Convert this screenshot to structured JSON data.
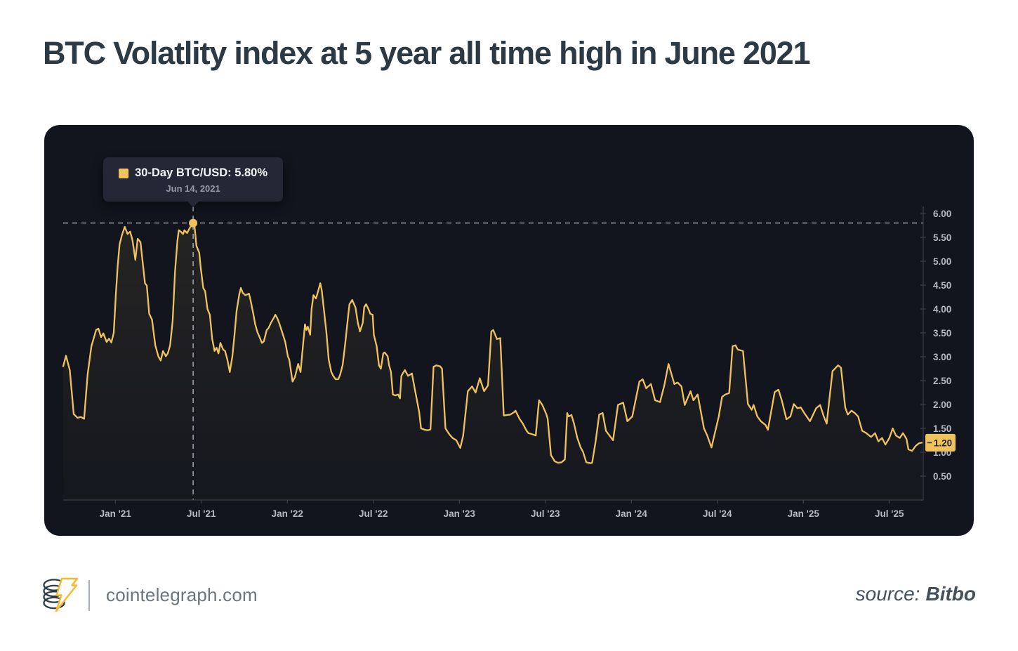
{
  "title": "BTC Volatlity index at 5 year all time high in June 2021",
  "tooltip": {
    "label": "30-Day BTC/USD: 5.80%",
    "date": "Jun 14, 2021",
    "swatch_color": "#F0C25C"
  },
  "footer": {
    "site": "cointelegraph.com",
    "source_label": "source:",
    "source_name": "Bitbo"
  },
  "colors": {
    "page_bg": "#FFFFFF",
    "panel_bg": "#12151E",
    "title_text": "#2C3A45",
    "accent_gold": "#F0C25C",
    "dashed_line": "#A9B0BA",
    "axis_line": "#3A3F4A",
    "axis_text": "#B5BAC3",
    "badge_bg": "#F0C25C",
    "badge_text": "#232838",
    "tooltip_bg": "#242836",
    "tooltip_date_text": "#939AA6",
    "footer_site_text": "#6B757E",
    "source_text": "#44505C"
  },
  "chart_data": {
    "type": "line",
    "series_name": "30-Day BTC/USD Volatility",
    "title": "BTC Volatlity index at 5 year all time high in June 2021",
    "xlabel": "",
    "ylabel": "",
    "grid": false,
    "legend_position": "tooltip",
    "line_color": "#F0C25C",
    "ylim": [
      0,
      6.0
    ],
    "y_ticks": [
      0.5,
      1.0,
      1.5,
      2.0,
      2.5,
      3.0,
      3.5,
      4.0,
      4.5,
      5.0,
      5.5,
      6.0
    ],
    "x_domain": [
      "2020-09-12",
      "2025-09-12"
    ],
    "x_ticks": [
      {
        "label": "Jan '21",
        "date": "2021-01-01"
      },
      {
        "label": "Jul '21",
        "date": "2021-07-01"
      },
      {
        "label": "Jan '22",
        "date": "2022-01-01"
      },
      {
        "label": "Jul '22",
        "date": "2022-07-01"
      },
      {
        "label": "Jan '23",
        "date": "2023-01-01"
      },
      {
        "label": "Jul '23",
        "date": "2023-07-01"
      },
      {
        "label": "Jan '24",
        "date": "2024-01-01"
      },
      {
        "label": "Jul '24",
        "date": "2024-07-01"
      },
      {
        "label": "Jan '25",
        "date": "2025-01-01"
      },
      {
        "label": "Jul '25",
        "date": "2025-07-01"
      }
    ],
    "marker": {
      "date": "2021-06-14",
      "value": 5.8,
      "label": "30-Day BTC/USD: 5.80%",
      "date_label": "Jun 14, 2021"
    },
    "dashed_reference_value": 5.8,
    "current_value": {
      "label": "1.20",
      "value": 1.2
    },
    "points": [
      [
        "2020-09-12",
        2.8
      ],
      [
        "2020-09-18",
        3.02
      ],
      [
        "2020-09-26",
        2.72
      ],
      [
        "2020-10-04",
        1.8
      ],
      [
        "2020-10-12",
        1.72
      ],
      [
        "2020-10-19",
        1.74
      ],
      [
        "2020-10-26",
        1.7
      ],
      [
        "2020-11-03",
        2.63
      ],
      [
        "2020-11-11",
        3.22
      ],
      [
        "2020-11-21",
        3.56
      ],
      [
        "2020-11-26",
        3.59
      ],
      [
        "2020-12-01",
        3.41
      ],
      [
        "2020-12-06",
        3.49
      ],
      [
        "2020-12-13",
        3.31
      ],
      [
        "2020-12-18",
        3.38
      ],
      [
        "2020-12-23",
        3.3
      ],
      [
        "2020-12-28",
        3.5
      ],
      [
        "2021-01-02",
        4.3
      ],
      [
        "2021-01-06",
        4.9
      ],
      [
        "2021-01-10",
        5.35
      ],
      [
        "2021-01-15",
        5.55
      ],
      [
        "2021-01-21",
        5.72
      ],
      [
        "2021-01-27",
        5.57
      ],
      [
        "2021-02-02",
        5.62
      ],
      [
        "2021-02-07",
        5.44
      ],
      [
        "2021-02-13",
        5.03
      ],
      [
        "2021-02-18",
        5.47
      ],
      [
        "2021-02-24",
        5.4
      ],
      [
        "2021-03-03",
        4.54
      ],
      [
        "2021-03-07",
        4.49
      ],
      [
        "2021-03-12",
        3.9
      ],
      [
        "2021-03-18",
        3.78
      ],
      [
        "2021-03-25",
        3.24
      ],
      [
        "2021-04-01",
        3.01
      ],
      [
        "2021-04-06",
        2.92
      ],
      [
        "2021-04-11",
        3.12
      ],
      [
        "2021-04-17",
        3.01
      ],
      [
        "2021-04-21",
        3.07
      ],
      [
        "2021-04-26",
        3.24
      ],
      [
        "2021-05-01",
        3.75
      ],
      [
        "2021-05-06",
        4.78
      ],
      [
        "2021-05-11",
        5.43
      ],
      [
        "2021-05-14",
        5.65
      ],
      [
        "2021-05-18",
        5.62
      ],
      [
        "2021-05-23",
        5.57
      ],
      [
        "2021-05-26",
        5.65
      ],
      [
        "2021-06-01",
        5.59
      ],
      [
        "2021-06-07",
        5.7
      ],
      [
        "2021-06-14",
        5.8
      ],
      [
        "2021-06-17",
        5.74
      ],
      [
        "2021-06-21",
        5.32
      ],
      [
        "2021-06-27",
        5.18
      ],
      [
        "2021-06-30",
        4.88
      ],
      [
        "2021-07-05",
        4.44
      ],
      [
        "2021-07-09",
        4.37
      ],
      [
        "2021-07-14",
        4.0
      ],
      [
        "2021-07-19",
        3.88
      ],
      [
        "2021-07-24",
        3.38
      ],
      [
        "2021-07-29",
        3.12
      ],
      [
        "2021-08-03",
        3.19
      ],
      [
        "2021-08-07",
        3.07
      ],
      [
        "2021-08-11",
        3.29
      ],
      [
        "2021-08-17",
        3.15
      ],
      [
        "2021-08-21",
        3.12
      ],
      [
        "2021-08-26",
        2.93
      ],
      [
        "2021-08-31",
        2.68
      ],
      [
        "2021-09-06",
        3.01
      ],
      [
        "2021-09-10",
        3.41
      ],
      [
        "2021-09-15",
        3.96
      ],
      [
        "2021-09-21",
        4.32
      ],
      [
        "2021-09-24",
        4.44
      ],
      [
        "2021-09-28",
        4.34
      ],
      [
        "2021-10-03",
        4.29
      ],
      [
        "2021-10-11",
        4.32
      ],
      [
        "2021-10-14",
        4.19
      ],
      [
        "2021-10-20",
        3.9
      ],
      [
        "2021-10-24",
        3.68
      ],
      [
        "2021-10-29",
        3.51
      ],
      [
        "2021-11-03",
        3.41
      ],
      [
        "2021-11-08",
        3.29
      ],
      [
        "2021-11-12",
        3.32
      ],
      [
        "2021-11-18",
        3.56
      ],
      [
        "2021-11-22",
        3.6
      ],
      [
        "2021-11-27",
        3.71
      ],
      [
        "2021-12-03",
        3.82
      ],
      [
        "2021-12-06",
        3.88
      ],
      [
        "2021-12-10",
        3.81
      ],
      [
        "2021-12-15",
        3.68
      ],
      [
        "2021-12-19",
        3.56
      ],
      [
        "2021-12-27",
        3.31
      ],
      [
        "2022-01-02",
        3.01
      ],
      [
        "2022-01-05",
        2.94
      ],
      [
        "2022-01-12",
        2.48
      ],
      [
        "2022-01-17",
        2.57
      ],
      [
        "2022-01-24",
        2.85
      ],
      [
        "2022-01-29",
        2.68
      ],
      [
        "2022-02-04",
        3.26
      ],
      [
        "2022-02-08",
        3.68
      ],
      [
        "2022-02-11",
        3.56
      ],
      [
        "2022-02-14",
        3.63
      ],
      [
        "2022-02-19",
        3.46
      ],
      [
        "2022-02-22",
        4.0
      ],
      [
        "2022-02-26",
        4.29
      ],
      [
        "2022-03-01",
        4.22
      ],
      [
        "2022-03-04",
        4.32
      ],
      [
        "2022-03-10",
        4.54
      ],
      [
        "2022-03-13",
        4.4
      ],
      [
        "2022-03-19",
        3.88
      ],
      [
        "2022-03-23",
        3.51
      ],
      [
        "2022-03-28",
        2.94
      ],
      [
        "2022-04-03",
        2.68
      ],
      [
        "2022-04-07",
        2.6
      ],
      [
        "2022-04-12",
        2.53
      ],
      [
        "2022-04-18",
        2.53
      ],
      [
        "2022-04-22",
        2.63
      ],
      [
        "2022-04-27",
        2.82
      ],
      [
        "2022-05-02",
        3.26
      ],
      [
        "2022-05-07",
        3.74
      ],
      [
        "2022-05-11",
        4.1
      ],
      [
        "2022-05-17",
        4.19
      ],
      [
        "2022-05-20",
        4.12
      ],
      [
        "2022-05-24",
        4.03
      ],
      [
        "2022-05-29",
        3.71
      ],
      [
        "2022-06-03",
        3.53
      ],
      [
        "2022-06-09",
        3.71
      ],
      [
        "2022-06-12",
        4.04
      ],
      [
        "2022-06-16",
        4.1
      ],
      [
        "2022-06-21",
        4.0
      ],
      [
        "2022-06-25",
        3.9
      ],
      [
        "2022-06-30",
        3.88
      ],
      [
        "2022-07-02",
        3.46
      ],
      [
        "2022-07-08",
        3.22
      ],
      [
        "2022-07-13",
        2.82
      ],
      [
        "2022-07-17",
        2.75
      ],
      [
        "2022-07-22",
        3.07
      ],
      [
        "2022-07-25",
        3.09
      ],
      [
        "2022-08-01",
        3.01
      ],
      [
        "2022-08-04",
        2.82
      ],
      [
        "2022-08-08",
        2.68
      ],
      [
        "2022-08-12",
        2.21
      ],
      [
        "2022-08-17",
        2.19
      ],
      [
        "2022-08-23",
        2.21
      ],
      [
        "2022-08-27",
        2.13
      ],
      [
        "2022-08-30",
        2.6
      ],
      [
        "2022-09-07",
        2.72
      ],
      [
        "2022-09-14",
        2.6
      ],
      [
        "2022-09-22",
        2.65
      ],
      [
        "2022-09-29",
        2.28
      ],
      [
        "2022-10-07",
        1.84
      ],
      [
        "2022-10-11",
        1.5
      ],
      [
        "2022-10-19",
        1.47
      ],
      [
        "2022-10-26",
        1.46
      ],
      [
        "2022-10-31",
        1.48
      ],
      [
        "2022-11-07",
        2.79
      ],
      [
        "2022-11-13",
        2.82
      ],
      [
        "2022-11-21",
        2.8
      ],
      [
        "2022-11-25",
        2.75
      ],
      [
        "2022-12-02",
        1.5
      ],
      [
        "2022-12-10",
        1.38
      ],
      [
        "2022-12-17",
        1.3
      ],
      [
        "2022-12-25",
        1.25
      ],
      [
        "2023-01-03",
        1.09
      ],
      [
        "2023-01-09",
        1.35
      ],
      [
        "2023-01-19",
        2.28
      ],
      [
        "2023-01-28",
        2.38
      ],
      [
        "2023-02-05",
        2.25
      ],
      [
        "2023-02-14",
        2.55
      ],
      [
        "2023-02-23",
        2.28
      ],
      [
        "2023-03-01",
        2.4
      ],
      [
        "2023-03-08",
        3.53
      ],
      [
        "2023-03-12",
        3.56
      ],
      [
        "2023-03-20",
        3.37
      ],
      [
        "2023-03-27",
        3.39
      ],
      [
        "2023-04-04",
        1.77
      ],
      [
        "2023-04-18",
        1.79
      ],
      [
        "2023-04-26",
        1.84
      ],
      [
        "2023-04-29",
        1.87
      ],
      [
        "2023-05-07",
        1.7
      ],
      [
        "2023-05-14",
        1.6
      ],
      [
        "2023-05-22",
        1.45
      ],
      [
        "2023-05-26",
        1.4
      ],
      [
        "2023-06-03",
        1.38
      ],
      [
        "2023-06-11",
        1.35
      ],
      [
        "2023-06-18",
        2.09
      ],
      [
        "2023-06-25",
        1.99
      ],
      [
        "2023-07-03",
        1.8
      ],
      [
        "2023-07-06",
        1.7
      ],
      [
        "2023-07-13",
        0.94
      ],
      [
        "2023-07-21",
        0.81
      ],
      [
        "2023-07-28",
        0.78
      ],
      [
        "2023-08-05",
        0.79
      ],
      [
        "2023-08-12",
        0.85
      ],
      [
        "2023-08-17",
        1.82
      ],
      [
        "2023-08-20",
        1.75
      ],
      [
        "2023-08-26",
        1.78
      ],
      [
        "2023-09-01",
        1.6
      ],
      [
        "2023-09-08",
        1.3
      ],
      [
        "2023-09-15",
        1.1
      ],
      [
        "2023-09-20",
        1.01
      ],
      [
        "2023-09-27",
        0.79
      ],
      [
        "2023-10-05",
        0.77
      ],
      [
        "2023-10-09",
        0.78
      ],
      [
        "2023-10-16",
        1.2
      ],
      [
        "2023-10-24",
        1.79
      ],
      [
        "2023-11-01",
        1.82
      ],
      [
        "2023-11-08",
        1.45
      ],
      [
        "2023-11-23",
        1.25
      ],
      [
        "2023-12-03",
        1.99
      ],
      [
        "2023-12-14",
        2.04
      ],
      [
        "2023-12-23",
        1.65
      ],
      [
        "2024-01-03",
        1.75
      ],
      [
        "2024-01-18",
        2.48
      ],
      [
        "2024-01-25",
        2.53
      ],
      [
        "2024-02-02",
        2.34
      ],
      [
        "2024-02-12",
        2.43
      ],
      [
        "2024-02-21",
        2.09
      ],
      [
        "2024-03-01",
        2.05
      ],
      [
        "2024-03-10",
        2.4
      ],
      [
        "2024-03-19",
        2.85
      ],
      [
        "2024-04-01",
        2.43
      ],
      [
        "2024-04-08",
        2.46
      ],
      [
        "2024-04-16",
        2.38
      ],
      [
        "2024-04-23",
        1.99
      ],
      [
        "2024-05-05",
        2.28
      ],
      [
        "2024-05-11",
        2.09
      ],
      [
        "2024-05-20",
        2.21
      ],
      [
        "2024-06-03",
        1.5
      ],
      [
        "2024-06-10",
        1.35
      ],
      [
        "2024-06-19",
        1.1
      ],
      [
        "2024-07-04",
        1.75
      ],
      [
        "2024-07-11",
        2.16
      ],
      [
        "2024-07-18",
        2.21
      ],
      [
        "2024-07-26",
        2.24
      ],
      [
        "2024-08-03",
        3.22
      ],
      [
        "2024-08-09",
        3.24
      ],
      [
        "2024-08-14",
        3.15
      ],
      [
        "2024-08-25",
        3.12
      ],
      [
        "2024-09-05",
        2.01
      ],
      [
        "2024-09-13",
        1.89
      ],
      [
        "2024-09-17",
        1.99
      ],
      [
        "2024-09-25",
        1.75
      ],
      [
        "2024-10-02",
        1.65
      ],
      [
        "2024-10-12",
        1.57
      ],
      [
        "2024-10-17",
        1.47
      ],
      [
        "2024-11-01",
        2.26
      ],
      [
        "2024-11-09",
        2.31
      ],
      [
        "2024-11-16",
        2.09
      ],
      [
        "2024-11-26",
        1.69
      ],
      [
        "2024-12-04",
        1.75
      ],
      [
        "2024-12-11",
        2.01
      ],
      [
        "2024-12-19",
        1.92
      ],
      [
        "2024-12-26",
        1.94
      ],
      [
        "2025-01-03",
        1.82
      ],
      [
        "2025-01-15",
        1.65
      ],
      [
        "2025-01-28",
        1.92
      ],
      [
        "2025-02-06",
        1.99
      ],
      [
        "2025-02-14",
        1.75
      ],
      [
        "2025-02-20",
        1.6
      ],
      [
        "2025-03-02",
        2.7
      ],
      [
        "2025-03-14",
        2.82
      ],
      [
        "2025-03-20",
        2.77
      ],
      [
        "2025-03-29",
        1.94
      ],
      [
        "2025-04-04",
        1.79
      ],
      [
        "2025-04-12",
        1.87
      ],
      [
        "2025-04-19",
        1.82
      ],
      [
        "2025-04-26",
        1.75
      ],
      [
        "2025-05-04",
        1.45
      ],
      [
        "2025-05-13",
        1.4
      ],
      [
        "2025-05-23",
        1.32
      ],
      [
        "2025-06-01",
        1.4
      ],
      [
        "2025-06-08",
        1.23
      ],
      [
        "2025-06-16",
        1.3
      ],
      [
        "2025-06-23",
        1.16
      ],
      [
        "2025-07-01",
        1.3
      ],
      [
        "2025-07-08",
        1.5
      ],
      [
        "2025-07-15",
        1.35
      ],
      [
        "2025-07-23",
        1.3
      ],
      [
        "2025-07-30",
        1.4
      ],
      [
        "2025-08-07",
        1.28
      ],
      [
        "2025-08-11",
        1.06
      ],
      [
        "2025-08-19",
        1.03
      ],
      [
        "2025-08-26",
        1.13
      ],
      [
        "2025-09-03",
        1.19
      ],
      [
        "2025-09-09",
        1.2
      ]
    ]
  }
}
